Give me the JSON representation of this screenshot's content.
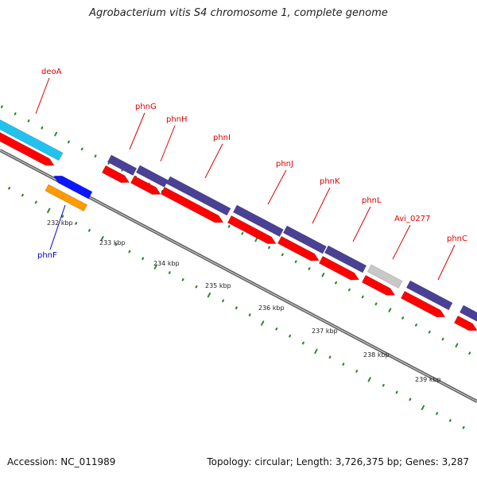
{
  "header": {
    "title": "Agrobacterium vitis S4 chromosome 1, complete genome"
  },
  "footer": {
    "accession": "Accession: NC_011989",
    "summary": "Topology: circular; Length: 3,726,375 bp; Genes: 3,287"
  },
  "colors": {
    "label_red": "#dd0000",
    "label_blue": "#0000cc",
    "cds_red": "#ff0000",
    "gene_purple": "#4a4196",
    "gene_gray": "#c8c8c8",
    "cyan": "#22c2ee",
    "blue": "#0a16ff",
    "orange": "#ff9a00",
    "tick_green": "#2a8a2a",
    "backbone": "#7a7a7a"
  },
  "genes": [
    {
      "name": "deoA",
      "label_color": "red",
      "bar_color": "cyan"
    },
    {
      "name": "phnF",
      "label_color": "blue",
      "bar_color": "orange"
    },
    {
      "name": "phnG",
      "label_color": "red",
      "bar_color": "purple"
    },
    {
      "name": "phnH",
      "label_color": "red",
      "bar_color": "purple"
    },
    {
      "name": "phnI",
      "label_color": "red",
      "bar_color": "purple"
    },
    {
      "name": "phnJ",
      "label_color": "red",
      "bar_color": "purple"
    },
    {
      "name": "phnK",
      "label_color": "red",
      "bar_color": "purple"
    },
    {
      "name": "phnL",
      "label_color": "red",
      "bar_color": "purple"
    },
    {
      "name": "Avi_0277",
      "label_color": "red",
      "bar_color": "gray"
    },
    {
      "name": "phnC",
      "label_color": "red",
      "bar_color": "purple"
    }
  ],
  "ticks": [
    "232 kbp",
    "233 kbp",
    "234 kbp",
    "235 kbp",
    "236 kbp",
    "237 kbp",
    "238 kbp",
    "239 kbp"
  ]
}
